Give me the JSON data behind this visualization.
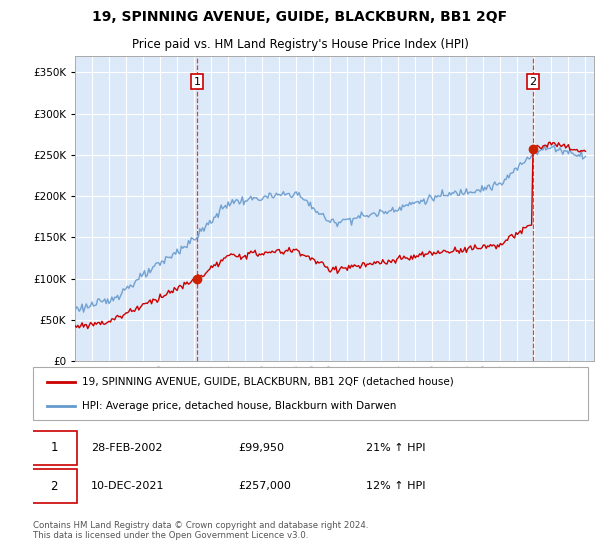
{
  "title": "19, SPINNING AVENUE, GUIDE, BLACKBURN, BB1 2QF",
  "subtitle": "Price paid vs. HM Land Registry's House Price Index (HPI)",
  "legend_line1": "19, SPINNING AVENUE, GUIDE, BLACKBURN, BB1 2QF (detached house)",
  "legend_line2": "HPI: Average price, detached house, Blackburn with Darwen",
  "annotation1_date": "28-FEB-2002",
  "annotation1_price": "£99,950",
  "annotation1_hpi": "21% ↑ HPI",
  "annotation1_year": 2002.15,
  "annotation1_value": 99950,
  "annotation2_date": "10-DEC-2021",
  "annotation2_price": "£257,000",
  "annotation2_hpi": "12% ↑ HPI",
  "annotation2_year": 2021.92,
  "annotation2_value": 257000,
  "footer": "Contains HM Land Registry data © Crown copyright and database right 2024.\nThis data is licensed under the Open Government Licence v3.0.",
  "ylim": [
    0,
    370000
  ],
  "yticks": [
    0,
    50000,
    100000,
    150000,
    200000,
    250000,
    300000,
    350000
  ],
  "background_color": "#dce9f8",
  "line_color_property": "#cc0000",
  "line_color_hpi": "#6699cc",
  "grid_color": "#ffffff",
  "annotation_box_color": "#cc0000",
  "start_year": 1995,
  "end_year": 2025
}
